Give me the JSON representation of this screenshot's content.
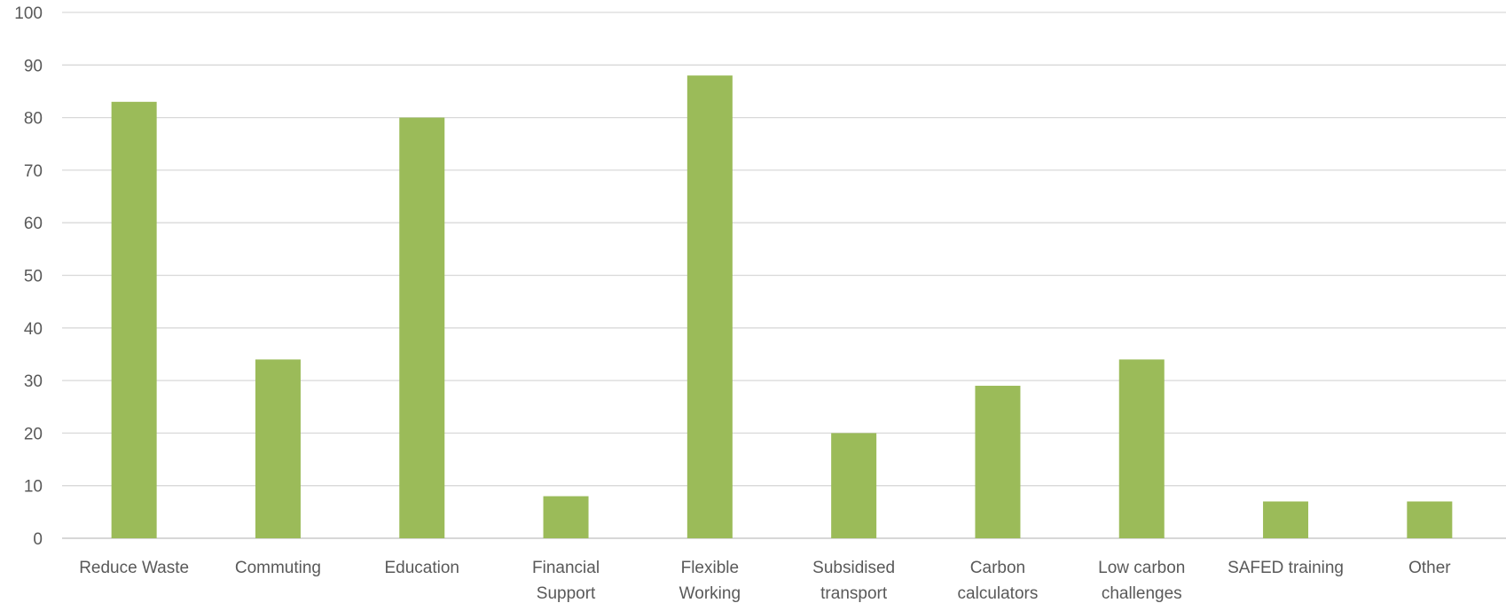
{
  "chart_data": {
    "type": "bar",
    "title": "",
    "xlabel": "",
    "ylabel": "",
    "categories": [
      [
        "Reduce Waste"
      ],
      [
        "Commuting"
      ],
      [
        "Education"
      ],
      [
        "Financial",
        "Support"
      ],
      [
        "Flexible",
        "Working"
      ],
      [
        "Subsidised",
        "transport"
      ],
      [
        "Carbon",
        "calculators"
      ],
      [
        "Low carbon",
        "challenges"
      ],
      [
        "SAFED training"
      ],
      [
        "Other"
      ]
    ],
    "values": [
      83,
      34,
      80,
      8,
      88,
      20,
      29,
      34,
      7,
      7
    ],
    "ylim": [
      0,
      100
    ],
    "yticks": [
      0,
      10,
      20,
      30,
      40,
      50,
      60,
      70,
      80,
      90,
      100
    ],
    "grid": true,
    "legend": "none",
    "bar_color": "#9bbb59"
  }
}
